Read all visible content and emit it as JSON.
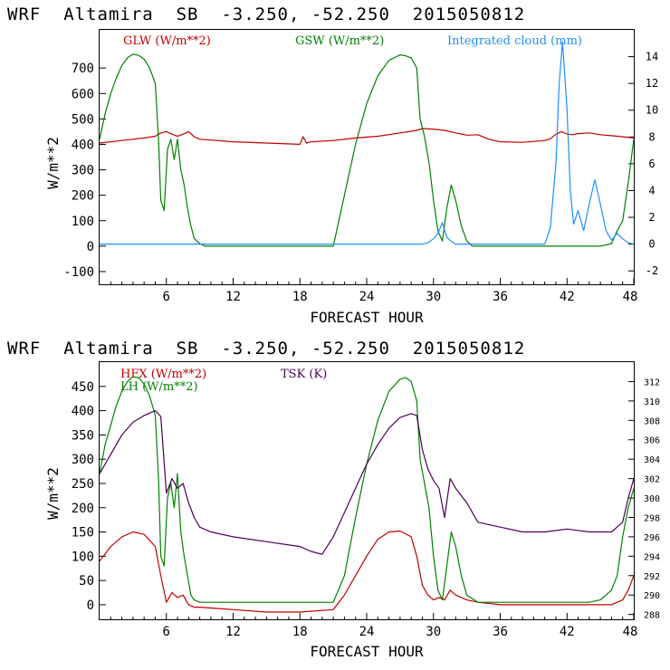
{
  "chart_data": [
    {
      "type": "line",
      "title": "WRF  Altamira  SB  -3.250, -52.250  2015050812",
      "xlabel": "FORECAST HOUR",
      "ylabel": "W/m**2",
      "xlim": [
        0,
        48
      ],
      "ylim": [
        -150,
        850
      ],
      "y2lim": [
        -3,
        16
      ],
      "x_ticks": [
        6,
        12,
        18,
        24,
        30,
        36,
        42,
        48
      ],
      "y_ticks": [
        -100,
        0,
        100,
        200,
        300,
        400,
        500,
        600,
        700
      ],
      "y2_ticks": [
        -2,
        0,
        2,
        4,
        6,
        8,
        10,
        12,
        14
      ],
      "x_tick_labels": [
        "6",
        "12",
        "18",
        "24",
        "30",
        "36",
        "42",
        "48"
      ],
      "y_tick_labels": [
        "-100",
        "0",
        "100",
        "200",
        "300",
        "400",
        "500",
        "600",
        "700"
      ],
      "y2_tick_labels": [
        "-2",
        "0",
        "2",
        "4",
        "6",
        "8",
        "10",
        "12",
        "14"
      ],
      "series": [
        {
          "name": "GLW (W/m**2)",
          "color": "#c00000",
          "axis": "left",
          "x": [
            0,
            1,
            2,
            3,
            4,
            5,
            5.5,
            6,
            6.5,
            7,
            7.5,
            8,
            8.5,
            9,
            12,
            15,
            18,
            18.3,
            18.6,
            19,
            21,
            23,
            25,
            27,
            28.5,
            29,
            30,
            31,
            32,
            33,
            34,
            35,
            36,
            38,
            40,
            40.5,
            41,
            41.5,
            42,
            42.5,
            43,
            44,
            45,
            46,
            47,
            48
          ],
          "y": [
            405,
            410,
            415,
            420,
            425,
            432,
            445,
            450,
            440,
            432,
            440,
            450,
            430,
            420,
            410,
            405,
            400,
            430,
            405,
            410,
            415,
            425,
            432,
            445,
            455,
            462,
            460,
            455,
            445,
            436,
            438,
            420,
            410,
            408,
            415,
            422,
            440,
            450,
            440,
            438,
            442,
            445,
            438,
            434,
            430,
            425
          ]
        },
        {
          "name": "GSW (W/m**2)",
          "color": "#008000",
          "axis": "left",
          "x": [
            0,
            0.5,
            1,
            1.5,
            2,
            2.5,
            3,
            3.5,
            4,
            4.5,
            5,
            5.3,
            5.5,
            5.8,
            6.1,
            6.4,
            6.7,
            7.0,
            7.3,
            7.6,
            7.9,
            8.2,
            8.5,
            9,
            9.5,
            21,
            22,
            23,
            24,
            25,
            26,
            27,
            27.5,
            28,
            28.5,
            28.8,
            29.2,
            29.6,
            30,
            30.4,
            30.8,
            31.2,
            31.6,
            32,
            32.5,
            33,
            33.5,
            45,
            46,
            46.5,
            47,
            47.5,
            48
          ],
          "y": [
            420,
            520,
            600,
            660,
            710,
            740,
            755,
            750,
            735,
            700,
            640,
            420,
            180,
            140,
            380,
            420,
            340,
            420,
            300,
            240,
            150,
            80,
            30,
            10,
            0,
            0,
            200,
            400,
            560,
            670,
            730,
            752,
            748,
            740,
            700,
            500,
            430,
            330,
            180,
            60,
            20,
            150,
            240,
            180,
            80,
            20,
            0,
            0,
            10,
            60,
            100,
            250,
            420
          ]
        },
        {
          "name": "Integrated cloud (mm)",
          "color": "#1e90ff",
          "axis": "right",
          "x": [
            0,
            29,
            29.5,
            30,
            30.4,
            30.8,
            31.2,
            31.6,
            32,
            40,
            40.5,
            41,
            41.3,
            41.6,
            42,
            42.3,
            42.6,
            43,
            43.5,
            44,
            44.5,
            45,
            45.5,
            46,
            46.5,
            47,
            47.5,
            48
          ],
          "y": [
            0,
            0,
            0.1,
            0.4,
            0.8,
            1.6,
            0.5,
            0.2,
            0,
            0,
            1.2,
            6,
            12,
            15.1,
            10,
            4,
            1.5,
            2.5,
            1,
            3,
            4.8,
            3,
            1,
            0.3,
            0.8,
            0.4,
            0.1,
            0
          ]
        }
      ]
    },
    {
      "type": "line",
      "title": "WRF  Altamira  SB  -3.250, -52.250  2015050812",
      "xlabel": "FORECAST HOUR",
      "ylabel": "W/m**2",
      "xlim": [
        0,
        48
      ],
      "ylim": [
        -30,
        500
      ],
      "y2lim": [
        287.5,
        314
      ],
      "x_ticks": [
        6,
        12,
        18,
        24,
        30,
        36,
        42,
        48
      ],
      "y_ticks": [
        0,
        50,
        100,
        150,
        200,
        250,
        300,
        350,
        400,
        450
      ],
      "y2_ticks": [
        288,
        290,
        292,
        294,
        296,
        298,
        300,
        302,
        304,
        306,
        308,
        310,
        312
      ],
      "x_tick_labels": [
        "6",
        "12",
        "18",
        "24",
        "30",
        "36",
        "42",
        "48"
      ],
      "y_tick_labels": [
        "0",
        "50",
        "100",
        "150",
        "200",
        "250",
        "300",
        "350",
        "400",
        "450"
      ],
      "y2_tick_labels": [
        "288",
        "290",
        "292",
        "294",
        "296",
        "298",
        "300",
        "302",
        "304",
        "306",
        "308",
        "310",
        "312"
      ],
      "series": [
        {
          "name": "HFX (W/m**2)",
          "color": "#c00000",
          "axis": "left",
          "x": [
            0,
            1,
            2,
            3,
            4,
            5,
            5.5,
            6,
            6.5,
            7,
            7.5,
            8,
            8.5,
            9,
            12,
            15,
            18,
            21,
            22,
            23,
            24,
            25,
            26,
            27,
            28,
            28.5,
            29,
            29.5,
            30,
            30.5,
            31,
            31.5,
            32,
            33,
            34,
            36,
            40,
            44,
            46,
            47,
            47.5,
            48
          ],
          "y": [
            90,
            120,
            140,
            150,
            145,
            120,
            60,
            5,
            25,
            15,
            20,
            0,
            -5,
            -5,
            -10,
            -15,
            -15,
            -10,
            20,
            60,
            100,
            135,
            150,
            152,
            140,
            100,
            40,
            20,
            10,
            15,
            10,
            30,
            20,
            10,
            5,
            0,
            0,
            0,
            0,
            10,
            30,
            60
          ]
        },
        {
          "name": "LH (W/m**2)",
          "color": "#008000",
          "axis": "left",
          "x": [
            0,
            0.5,
            1,
            1.5,
            2,
            2.5,
            3,
            3.5,
            4,
            4.5,
            5,
            5.3,
            5.5,
            5.8,
            6.1,
            6.4,
            6.7,
            7.0,
            7.3,
            7.6,
            7.9,
            8.2,
            8.5,
            9,
            12,
            15,
            18,
            21,
            22,
            23,
            24,
            25,
            26,
            27,
            27.5,
            28,
            28.5,
            28.8,
            29.2,
            29.6,
            30,
            30.4,
            30.8,
            31.2,
            31.6,
            32,
            32.5,
            33,
            34,
            36,
            40,
            44,
            45,
            46,
            46.5,
            47,
            47.5,
            48
          ],
          "y": [
            270,
            330,
            370,
            410,
            440,
            460,
            470,
            468,
            455,
            430,
            390,
            260,
            100,
            80,
            220,
            250,
            200,
            270,
            150,
            100,
            60,
            20,
            10,
            5,
            5,
            5,
            5,
            5,
            60,
            180,
            290,
            380,
            440,
            465,
            468,
            460,
            420,
            300,
            250,
            200,
            100,
            30,
            10,
            80,
            150,
            120,
            60,
            20,
            5,
            5,
            5,
            5,
            10,
            30,
            60,
            140,
            200,
            240
          ]
        },
        {
          "name": "TSK (K)",
          "color": "#4b0055",
          "axis": "right",
          "x": [
            0,
            1,
            2,
            3,
            4,
            5,
            5.5,
            6,
            6.5,
            7,
            7.5,
            8,
            8.5,
            9,
            10,
            12,
            15,
            18,
            19,
            20,
            21,
            22,
            23,
            24,
            25,
            26,
            27,
            28,
            28.5,
            29,
            29.5,
            30,
            30.5,
            31,
            31.5,
            32,
            33,
            34,
            36,
            38,
            40,
            42,
            44,
            46,
            47,
            47.5,
            48
          ],
          "y": [
            302.5,
            304.5,
            306.5,
            307.8,
            308.5,
            309,
            308.4,
            300.5,
            302,
            301,
            301.5,
            299.5,
            298,
            297,
            296.5,
            296,
            295.5,
            295,
            294.5,
            294.2,
            296,
            298.5,
            301,
            303.5,
            305.5,
            307.2,
            308.3,
            308.7,
            308.5,
            305,
            303,
            301.8,
            301,
            298,
            302,
            301,
            299.5,
            297.5,
            297,
            296.5,
            296.5,
            296.8,
            296.5,
            296.5,
            297.5,
            300,
            302
          ]
        }
      ]
    }
  ]
}
